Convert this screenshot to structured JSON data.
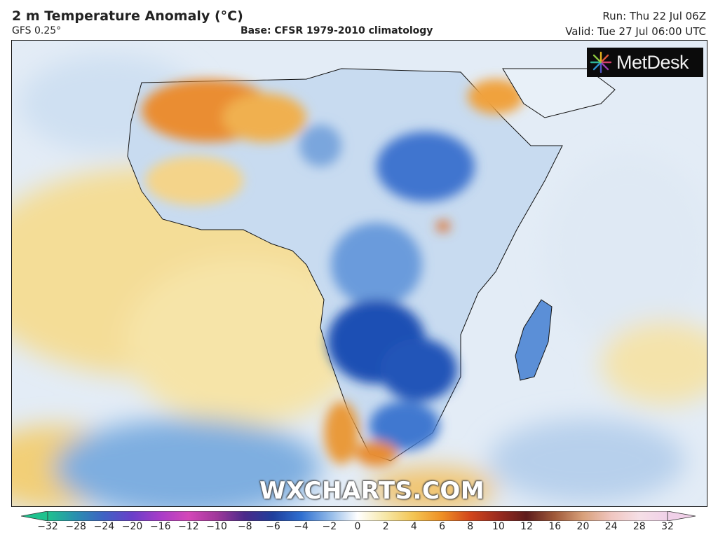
{
  "header": {
    "title": "2 m Temperature Anomaly (°C)",
    "subtitle": "GFS 0.25°",
    "base": "Base: CFSR 1979-2010 climatology",
    "run": "Run: Thu 22 Jul 06Z",
    "valid": "Valid: Tue 27 Jul 06:00 UTC"
  },
  "map": {
    "region": "Africa and surrounding oceans",
    "variable": "2 m temperature anomaly",
    "units": "°C"
  },
  "logo": {
    "text": "MetDesk",
    "icon": "metdesk-burst-logo"
  },
  "watermark": "WXCHARTS.COM",
  "colorbar": {
    "ticks": [
      "−32",
      "−28",
      "−24",
      "−20",
      "−16",
      "−12",
      "−10",
      "−8",
      "−6",
      "−4",
      "−2",
      "0",
      "2",
      "4",
      "6",
      "8",
      "10",
      "12",
      "16",
      "20",
      "24",
      "28",
      "32"
    ],
    "colors": [
      "#1fc28e",
      "#2a8fb0",
      "#3f62c4",
      "#6a3fc9",
      "#a83cc8",
      "#d447b8",
      "#a0389a",
      "#4a2a8a",
      "#1f3f9c",
      "#2f6fd0",
      "#8fb8e8",
      "#ffffff",
      "#f6e7a6",
      "#f3c452",
      "#ee8f25",
      "#d2461c",
      "#9a2b1f",
      "#5e1c1c",
      "#a05a3a",
      "#d8a07a",
      "#f0c6c0",
      "#f5dfe6",
      "#f0d0e8"
    ]
  }
}
